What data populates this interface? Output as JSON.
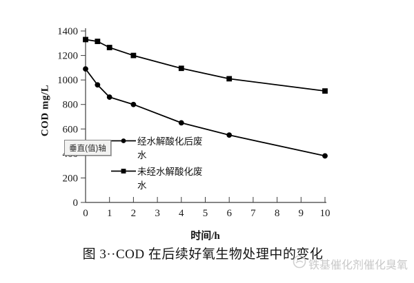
{
  "chart_data": {
    "type": "line",
    "title": "",
    "xlabel": "时间/h",
    "ylabel": "COD mg/L",
    "xlim": [
      0,
      10
    ],
    "ylim": [
      0,
      1400
    ],
    "xticks": [
      0,
      1,
      2,
      3,
      4,
      5,
      6,
      7,
      8,
      9,
      10
    ],
    "yticks": [
      0,
      200,
      400,
      600,
      800,
      1000,
      1200,
      1400
    ],
    "grid": false,
    "legend_position": "inside-center-left",
    "x": [
      0,
      0.5,
      1,
      2,
      4,
      6,
      10
    ],
    "series": [
      {
        "name": "经水解酸化后废水",
        "marker": "circle",
        "color": "#000000",
        "values": [
          1090,
          960,
          860,
          800,
          650,
          550,
          380
        ]
      },
      {
        "name": "未经水解酸化废水",
        "marker": "square",
        "color": "#000000",
        "values": [
          1330,
          1315,
          1265,
          1200,
          1095,
          1010,
          910
        ]
      }
    ]
  },
  "tooltip": {
    "text": "垂直(值)轴"
  },
  "caption": {
    "text": "图 3··COD 在后续好氧生物处理中的变化"
  },
  "watermark": {
    "text": "铁基催化剂催化臭氧",
    "icon": "circular-logo",
    "color": "#c9c9c9"
  },
  "colors": {
    "axis": "#3d3d3d",
    "series": "#000000",
    "text": "#1a1a1a",
    "tooltip_background": "#f2f2f1",
    "tooltip_border": "#848484",
    "watermark": "#c9c9c9"
  }
}
